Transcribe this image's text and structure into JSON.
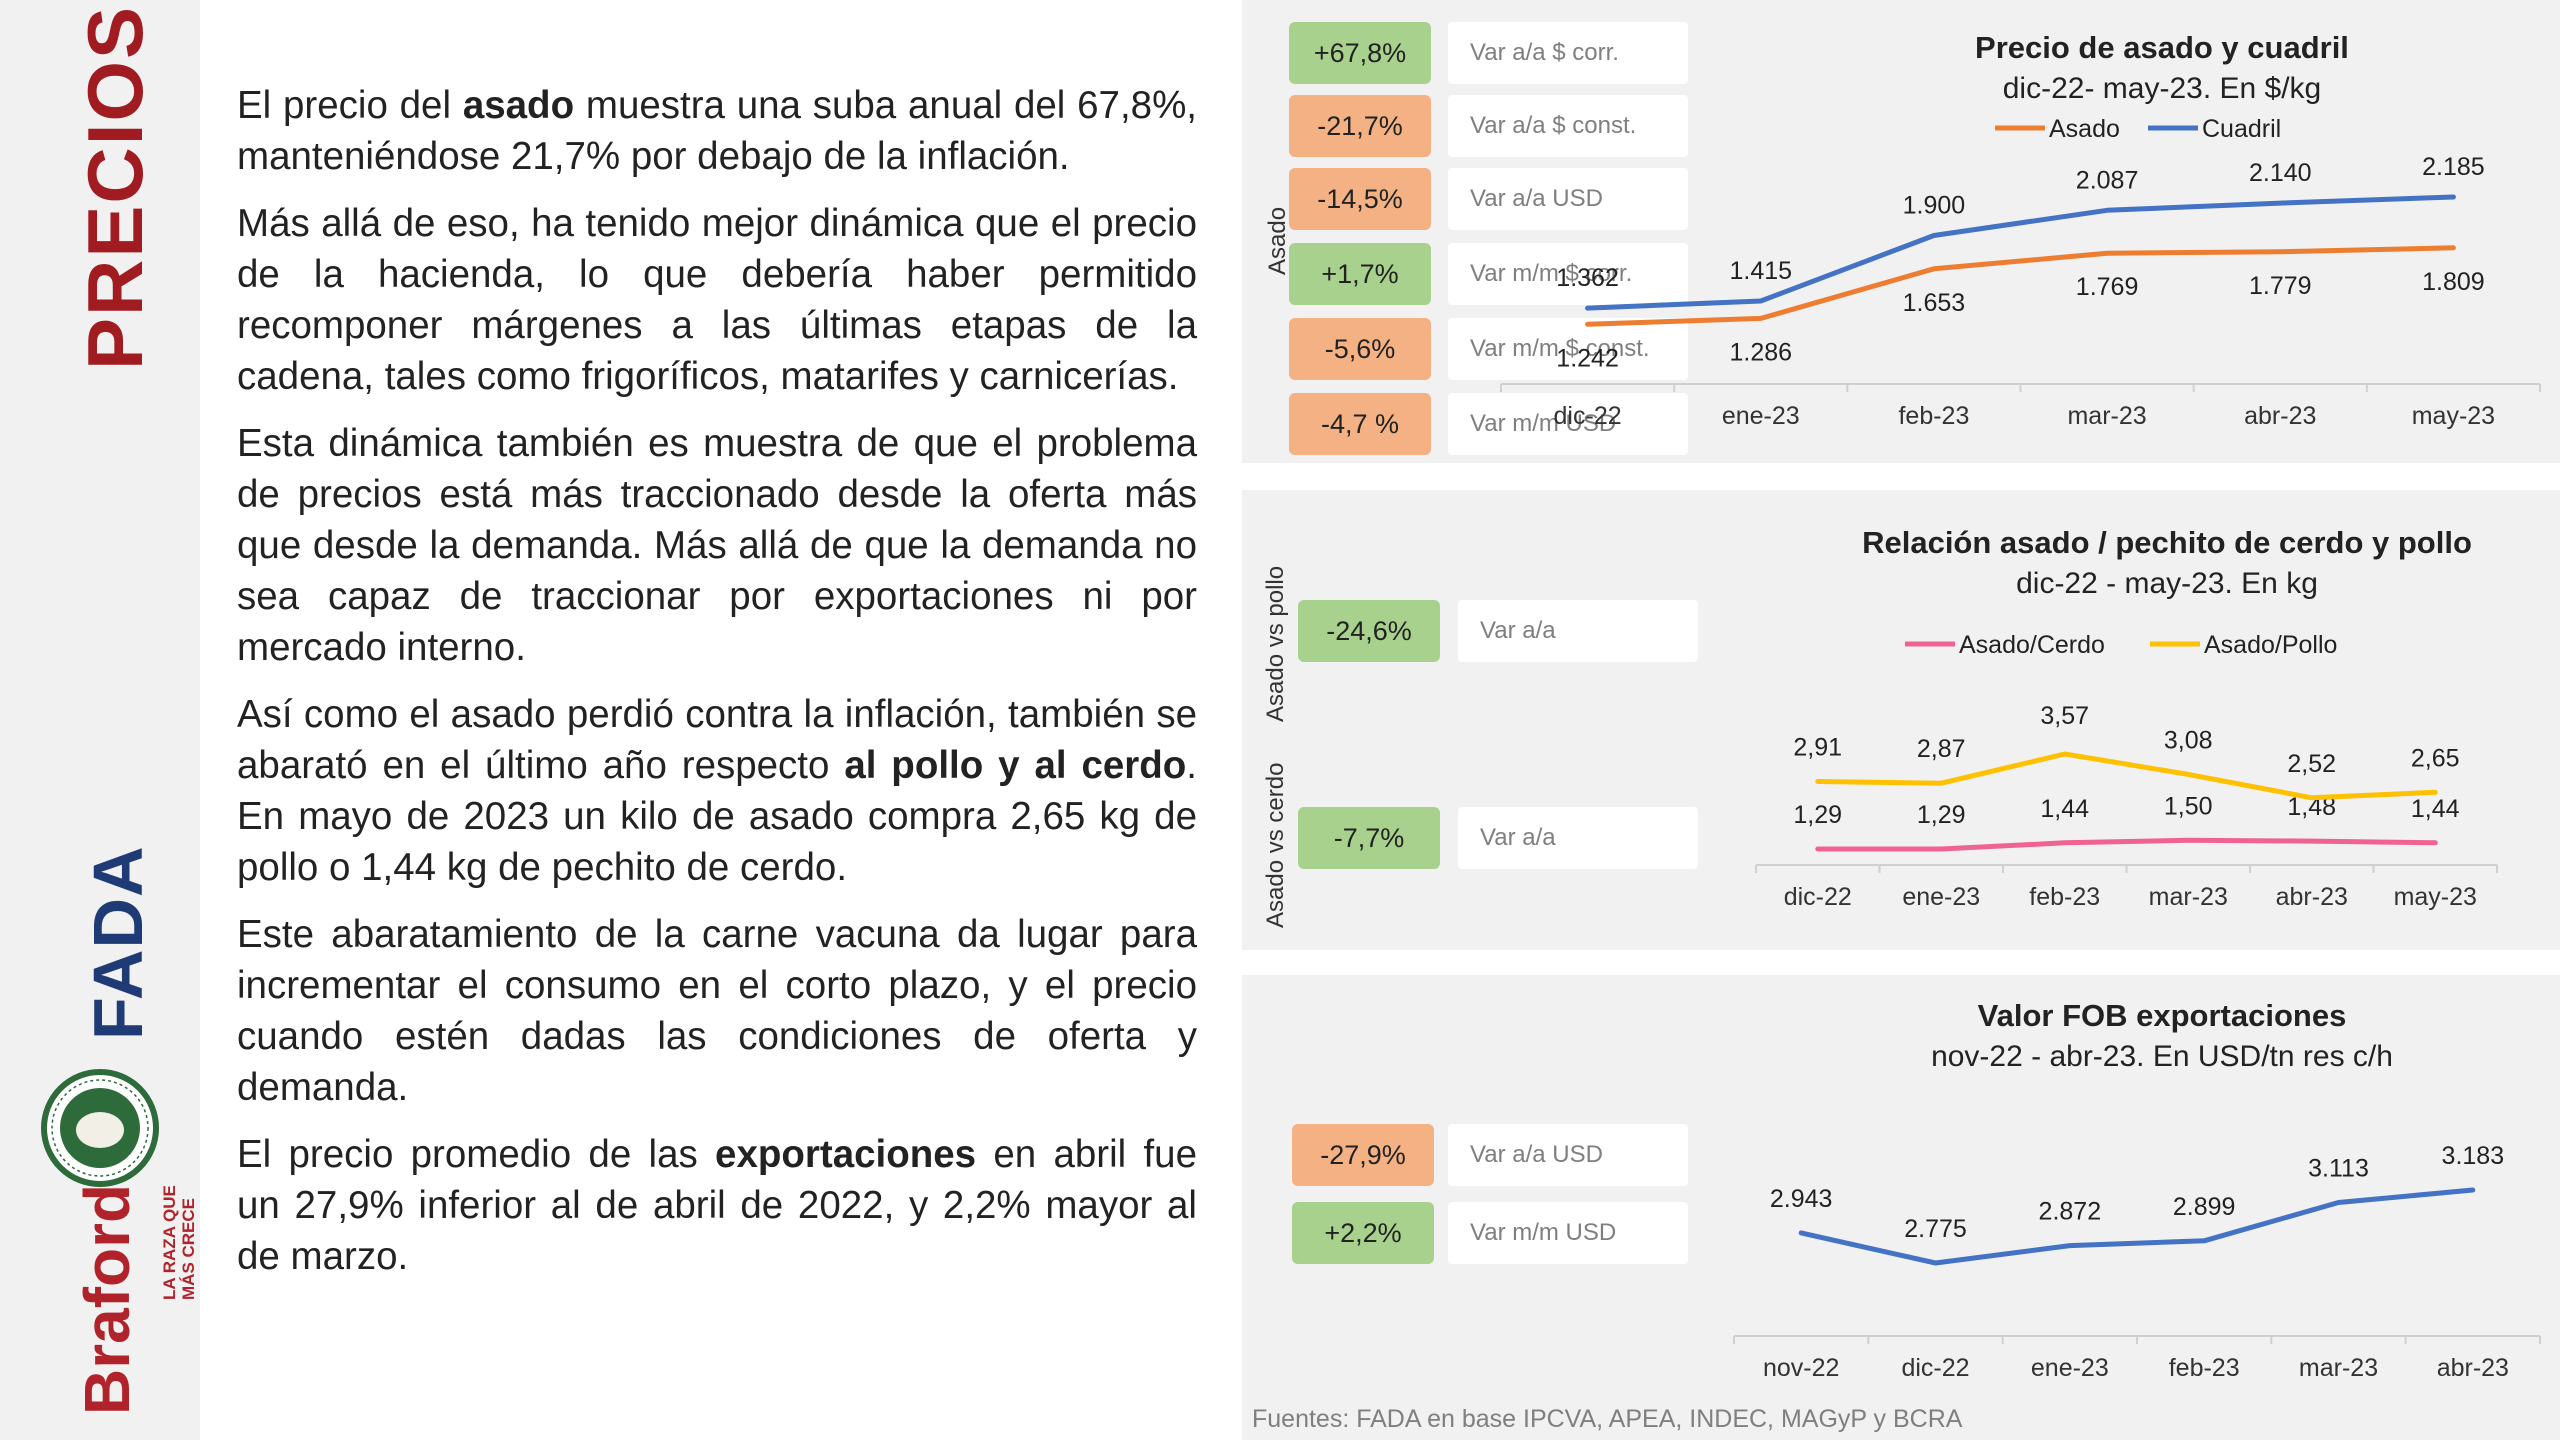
{
  "sidebar": {
    "section_title": "PRECIOS",
    "fada_logo": "FADA",
    "braford_logo": "Braford",
    "braford_tagline_1": "LA RAZA QUE",
    "braford_tagline_2": "MÁS CRECE"
  },
  "body": {
    "p1_a": "El precio del ",
    "p1_b": "asado",
    "p1_c": " muestra una suba anual del 67,8%, manteniéndose 21,7% por debajo de la inflación.",
    "p2": "Más allá de eso, ha tenido mejor dinámica que el precio de la hacienda, lo que debería haber permitido recomponer márgenes a las últimas etapas de la cadena, tales como frigoríficos, matarifes y carnicerías.",
    "p3": "Esta dinámica también es muestra de que el problema de precios está más traccionado desde la oferta más que desde la demanda. Más allá de que la demanda no sea capaz de traccionar por exportaciones ni por mercado interno.",
    "p4_a": "Así como el asado perdió contra la inflación, también se abarató en el último año respecto ",
    "p4_b": "al pollo y al cerdo",
    "p4_c": ". En mayo de 2023 un kilo de asado compra 2,65 kg de pollo o 1,44 kg de pechito de cerdo.",
    "p5": "Este abaratamiento de la carne vacuna da lugar para incrementar el consumo en el corto plazo, y el precio cuando estén dadas las condiciones de oferta y demanda.",
    "p6_a": "El precio promedio de las ",
    "p6_b": "exportaciones",
    "p6_c": " en abril fue un 27,9% inferior al de abril de 2022, y 2,2% mayor al de marzo."
  },
  "top_panel": {
    "side_label": "Asado",
    "kpis": [
      {
        "value": "+67,8%",
        "label": "Var a/a $ corr.",
        "tone": "pos"
      },
      {
        "value": "-21,7%",
        "label": "Var a/a $ const.",
        "tone": "neg"
      },
      {
        "value": "-14,5%",
        "label": "Var a/a USD",
        "tone": "neg"
      },
      {
        "value": "+1,7%",
        "label": "Var m/m $ corr.",
        "tone": "pos"
      },
      {
        "value": "-5,6%",
        "label": "Var m/m $ const.",
        "tone": "neg"
      },
      {
        "value": "-4,7 %",
        "label": "Var m/m USD",
        "tone": "neg"
      }
    ]
  },
  "mid_panel": {
    "kpis": [
      {
        "side_label": "Asado vs pollo",
        "value": "-24,6%",
        "label": "Var a/a",
        "tone": "pos"
      },
      {
        "side_label": "Asado vs cerdo",
        "value": "-7,7%",
        "label": "Var a/a",
        "tone": "pos"
      }
    ]
  },
  "bot_panel": {
    "kpis": [
      {
        "value": "-27,9%",
        "label": "Var a/a USD",
        "tone": "neg"
      },
      {
        "value": "+2,2%",
        "label": "Var m/m USD",
        "tone": "pos"
      }
    ]
  },
  "sources": "Fuentes: FADA en base IPCVA, APEA, INDEC, MAGyP y BCRA",
  "colors": {
    "asado": "#ed7d31",
    "cuadril": "#4472c4",
    "cerdo": "#f06292",
    "pollo": "#ffc000",
    "fob": "#4472c4",
    "kpi_pos": "#a9d18e",
    "kpi_neg": "#f4b183",
    "title_red": "#a01c20"
  },
  "chart_data": [
    {
      "type": "line",
      "title": "Precio de asado y cuadril",
      "subtitle": "dic-22- may-23. En $/kg",
      "categories": [
        "dic-22",
        "ene-23",
        "feb-23",
        "mar-23",
        "abr-23",
        "may-23"
      ],
      "series": [
        {
          "name": "Asado",
          "values": [
            1242,
            1286,
            1653,
            1769,
            1779,
            1809
          ],
          "labels": [
            "1.242",
            "1.286",
            "1.653",
            "1.769",
            "1.779",
            "1.809"
          ]
        },
        {
          "name": "Cuadril",
          "values": [
            1362,
            1415,
            1900,
            2087,
            2140,
            2185
          ],
          "labels": [
            "1.362",
            "1.415",
            "1.900",
            "2.087",
            "2.140",
            "2.185"
          ]
        }
      ],
      "legend": "top",
      "grid": false
    },
    {
      "type": "line",
      "title": "Relación asado / pechito de cerdo y pollo",
      "subtitle": "dic-22 - may-23. En kg",
      "categories": [
        "dic-22",
        "ene-23",
        "feb-23",
        "mar-23",
        "abr-23",
        "may-23"
      ],
      "series": [
        {
          "name": "Asado/Cerdo",
          "values": [
            1.29,
            1.29,
            1.44,
            1.5,
            1.48,
            1.44
          ],
          "labels": [
            "1,29",
            "1,29",
            "1,44",
            "1,50",
            "1,48",
            "1,44"
          ]
        },
        {
          "name": "Asado/Pollo",
          "values": [
            2.91,
            2.87,
            3.57,
            3.08,
            2.52,
            2.65
          ],
          "labels": [
            "2,91",
            "2,87",
            "3,57",
            "3,08",
            "2,52",
            "2,65"
          ]
        }
      ],
      "legend": "top",
      "grid": false
    },
    {
      "type": "line",
      "title": "Valor FOB exportaciones",
      "subtitle": "nov-22 - abr-23. En USD/tn res c/h",
      "categories": [
        "nov-22",
        "dic-22",
        "ene-23",
        "feb-23",
        "mar-23",
        "abr-23"
      ],
      "series": [
        {
          "name": "",
          "values": [
            2943,
            2775,
            2872,
            2899,
            3113,
            3183
          ],
          "labels": [
            "2.943",
            "2.775",
            "2.872",
            "2.899",
            "3.113",
            "3.183"
          ]
        }
      ],
      "grid": false
    }
  ]
}
